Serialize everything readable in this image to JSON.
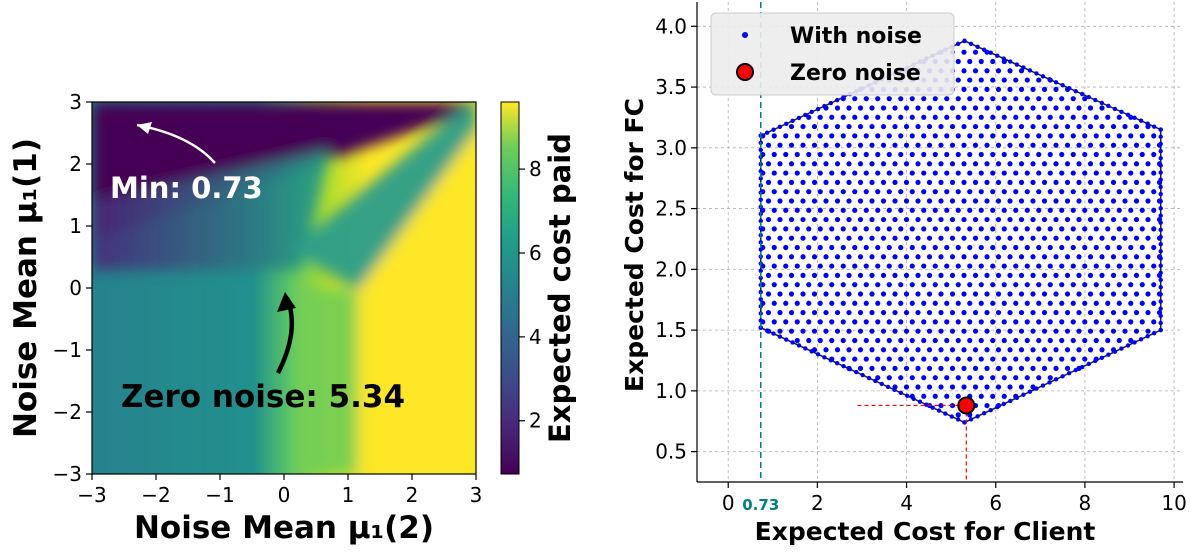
{
  "chart_data": [
    {
      "type": "heatmap",
      "xlabel": "Noise Mean μ₁(2)",
      "ylabel": "Noise Mean μ₁(1)",
      "xlim": [
        -3,
        3
      ],
      "ylim": [
        -3,
        3
      ],
      "x_ticks": [
        "−3",
        "−2",
        "−1",
        "0",
        "1",
        "2",
        "3"
      ],
      "y_ticks": [
        "−3",
        "−2",
        "−1",
        "0",
        "1",
        "2",
        "3"
      ],
      "colorbar": {
        "label": "Expected cost paid",
        "range": [
          0.73,
          9.6
        ],
        "ticks": [
          "2",
          "4",
          "6",
          "8"
        ],
        "colormap": "viridis"
      },
      "annotations": [
        {
          "text": "Min: 0.73",
          "arrow_to": [
            -2.3,
            2.6
          ],
          "value": 0.73,
          "color": "#ffffff"
        },
        {
          "text": "Zero noise: 5.34",
          "arrow_to": [
            0,
            0
          ],
          "value": 5.34,
          "color": "#000000"
        }
      ]
    },
    {
      "type": "scatter",
      "xlabel": "Expected Cost for Client",
      "ylabel": "Expected Cost for FC",
      "xlim": [
        -0.7,
        10.2
      ],
      "ylim": [
        0.25,
        4.2
      ],
      "x_ticks": [
        "0",
        "2",
        "4",
        "6",
        "8",
        "10"
      ],
      "y_ticks": [
        "0.5",
        "1.0",
        "1.5",
        "2.0",
        "2.5",
        "3.0",
        "3.5",
        "4.0"
      ],
      "grid": true,
      "legend_position": "upper-left",
      "series": [
        {
          "name": "With noise",
          "color": "#0000ff",
          "shape": "hexagon",
          "hull": [
            [
              5.3,
              0.74
            ],
            [
              9.7,
              1.5
            ],
            [
              9.7,
              3.15
            ],
            [
              5.3,
              3.88
            ],
            [
              0.73,
              3.1
            ],
            [
              0.73,
              1.52
            ]
          ]
        },
        {
          "name": "Zero noise",
          "color": "#ff0000",
          "points": [
            [
              5.34,
              0.88
            ]
          ]
        }
      ],
      "reference_lines": [
        {
          "axis": "x",
          "value": 0.73,
          "label": "0.73",
          "color": "#008080"
        },
        {
          "axis": "x",
          "value": 5.34,
          "color": "#ff0000"
        },
        {
          "axis": "y",
          "value": 0.88,
          "color": "#ff0000"
        }
      ]
    }
  ]
}
